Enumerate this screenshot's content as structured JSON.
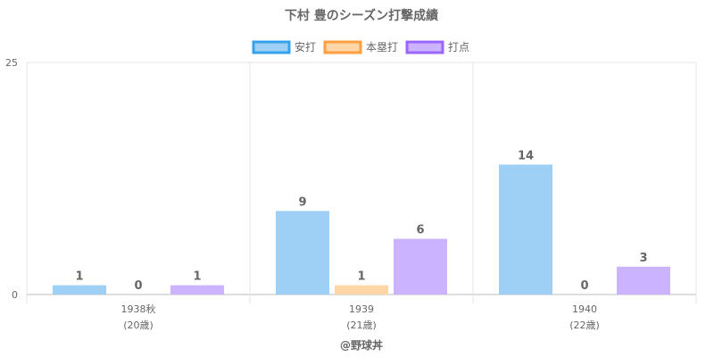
{
  "chart_data": {
    "type": "bar",
    "title": "下村 豊のシーズン打撃成績",
    "categories": [
      {
        "line1": "1938秋",
        "line2": "(20歳)"
      },
      {
        "line1": "1939",
        "line2": "(21歳)"
      },
      {
        "line1": "1940",
        "line2": "(22歳)"
      }
    ],
    "series": [
      {
        "name": "安打",
        "values": [
          1,
          9,
          14
        ],
        "fill": "#9ed0f5",
        "stroke": "#36a2eb"
      },
      {
        "name": "本塁打",
        "values": [
          0,
          1,
          0
        ],
        "fill": "#ffd6a6",
        "stroke": "#ff9f40"
      },
      {
        "name": "打点",
        "values": [
          1,
          6,
          3
        ],
        "fill": "#ccb3ff",
        "stroke": "#9966ff"
      }
    ],
    "ylim": [
      0,
      25
    ],
    "yticks": [
      0,
      25
    ],
    "grid": true,
    "legend_position": "top",
    "credit": "@野球丼"
  }
}
